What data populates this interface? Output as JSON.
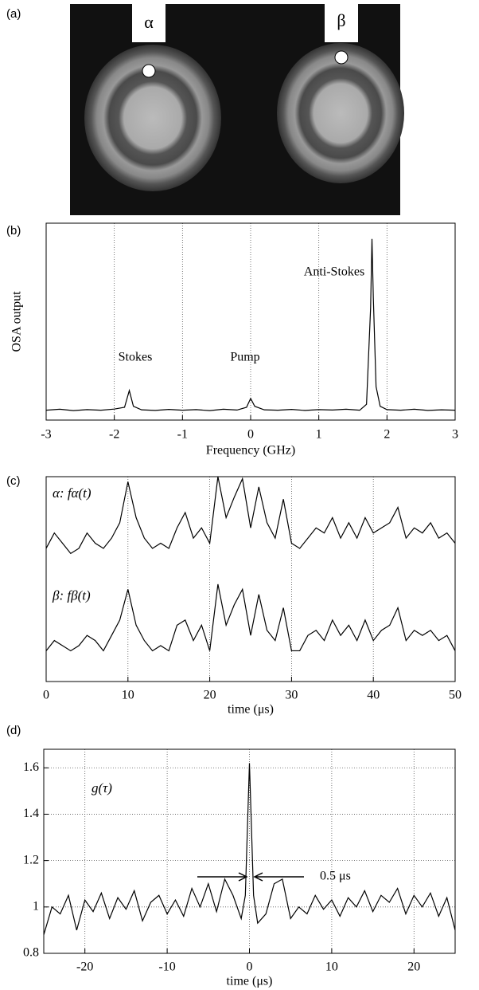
{
  "image_panel": {
    "label": "(a)",
    "markers": [
      "α",
      "β"
    ]
  },
  "chart_data": [
    {
      "type": "line",
      "label": "(b)",
      "x_label": "Frequency (GHz)",
      "y_label": "OSA output",
      "xlim": [
        -3,
        3
      ],
      "xticks": [
        -3,
        -2,
        -1,
        0,
        1,
        2,
        3
      ],
      "ylim": [
        0,
        1
      ],
      "grid": true,
      "annotations": [
        "Stokes",
        "Pump",
        "Anti-Stokes"
      ],
      "x": [
        -3,
        -2.8,
        -2.6,
        -2.4,
        -2.2,
        -2,
        -1.85,
        -1.78,
        -1.72,
        -1.6,
        -1.4,
        -1.2,
        -1,
        -0.8,
        -0.6,
        -0.4,
        -0.2,
        -0.06,
        0,
        0.06,
        0.2,
        0.4,
        0.6,
        0.8,
        1,
        1.2,
        1.4,
        1.6,
        1.7,
        1.76,
        1.78,
        1.8,
        1.84,
        1.9,
        2,
        2.2,
        2.4,
        2.6,
        2.8,
        3
      ],
      "series": [
        {
          "color": "#000000",
          "values": [
            0.05,
            0.055,
            0.048,
            0.053,
            0.05,
            0.056,
            0.065,
            0.15,
            0.07,
            0.052,
            0.049,
            0.054,
            0.05,
            0.053,
            0.048,
            0.055,
            0.051,
            0.065,
            0.11,
            0.07,
            0.052,
            0.05,
            0.054,
            0.049,
            0.053,
            0.051,
            0.055,
            0.05,
            0.08,
            0.57,
            0.92,
            0.62,
            0.17,
            0.07,
            0.053,
            0.05,
            0.055,
            0.049,
            0.052,
            0.05
          ]
        }
      ]
    },
    {
      "type": "line",
      "label": "(c)",
      "x_label": "time (μs)",
      "xlim": [
        0,
        50
      ],
      "xticks": [
        0,
        10,
        20,
        30,
        40,
        50
      ],
      "ylim": [
        0,
        1
      ],
      "grid": true,
      "x": [
        0,
        1,
        2,
        3,
        4,
        5,
        6,
        7,
        8,
        9,
        10,
        11,
        12,
        13,
        14,
        15,
        16,
        17,
        18,
        19,
        20,
        21,
        22,
        23,
        24,
        25,
        26,
        27,
        28,
        29,
        30,
        31,
        32,
        33,
        34,
        35,
        36,
        37,
        38,
        39,
        40,
        41,
        42,
        43,
        44,
        45,
        46,
        47,
        48,
        49,
        50
      ],
      "series": [
        {
          "name": "α: fα(t)",
          "color": "#000000",
          "values": [
            0.3,
            0.45,
            0.35,
            0.25,
            0.3,
            0.45,
            0.35,
            0.3,
            0.4,
            0.55,
            0.95,
            0.6,
            0.4,
            0.3,
            0.35,
            0.3,
            0.5,
            0.65,
            0.4,
            0.5,
            0.35,
            1.0,
            0.6,
            0.8,
            0.98,
            0.5,
            0.9,
            0.55,
            0.4,
            0.78,
            0.35,
            0.3,
            0.4,
            0.5,
            0.45,
            0.6,
            0.4,
            0.55,
            0.4,
            0.6,
            0.45,
            0.5,
            0.55,
            0.7,
            0.4,
            0.5,
            0.45,
            0.55,
            0.4,
            0.45,
            0.35
          ]
        },
        {
          "name": "β: fβ(t)",
          "color": "#000000",
          "values": [
            0.3,
            0.4,
            0.35,
            0.3,
            0.35,
            0.45,
            0.4,
            0.3,
            0.45,
            0.6,
            0.9,
            0.55,
            0.4,
            0.3,
            0.35,
            0.3,
            0.55,
            0.6,
            0.4,
            0.55,
            0.3,
            0.95,
            0.55,
            0.75,
            0.9,
            0.45,
            0.85,
            0.5,
            0.4,
            0.72,
            0.3,
            0.3,
            0.45,
            0.5,
            0.4,
            0.6,
            0.45,
            0.55,
            0.4,
            0.6,
            0.4,
            0.5,
            0.55,
            0.72,
            0.4,
            0.5,
            0.45,
            0.5,
            0.4,
            0.45,
            0.3
          ]
        }
      ]
    },
    {
      "type": "line",
      "label": "(d)",
      "x_label": "time (μs)",
      "xlim": [
        -25,
        25
      ],
      "xticks": [
        -20,
        -10,
        0,
        10,
        20
      ],
      "ylim": [
        0.8,
        1.68
      ],
      "yticks": [
        0.8,
        1,
        1.2,
        1.4,
        1.6
      ],
      "grid": true,
      "annotations": [
        "0.5 μs"
      ],
      "x": [
        -25,
        -24,
        -23,
        -22,
        -21,
        -20,
        -19,
        -18,
        -17,
        -16,
        -15,
        -14,
        -13,
        -12,
        -11,
        -10,
        -9,
        -8,
        -7,
        -6,
        -5,
        -4,
        -3,
        -2,
        -1,
        -0.5,
        0,
        0.5,
        1,
        2,
        3,
        4,
        5,
        6,
        7,
        8,
        9,
        10,
        11,
        12,
        13,
        14,
        15,
        16,
        17,
        18,
        19,
        20,
        21,
        22,
        23,
        24,
        25
      ],
      "series": [
        {
          "name": "g(τ)",
          "color": "#000000",
          "values": [
            0.88,
            1.0,
            0.97,
            1.05,
            0.9,
            1.03,
            0.98,
            1.06,
            0.95,
            1.04,
            0.99,
            1.07,
            0.94,
            1.02,
            1.05,
            0.97,
            1.03,
            0.96,
            1.08,
            1.0,
            1.1,
            0.98,
            1.12,
            1.05,
            0.95,
            1.05,
            1.62,
            1.05,
            0.93,
            0.97,
            1.1,
            1.12,
            0.95,
            1.0,
            0.97,
            1.05,
            0.99,
            1.03,
            0.96,
            1.04,
            1.0,
            1.07,
            0.98,
            1.05,
            1.02,
            1.08,
            0.97,
            1.05,
            1.0,
            1.06,
            0.96,
            1.04,
            0.9
          ]
        }
      ]
    }
  ]
}
